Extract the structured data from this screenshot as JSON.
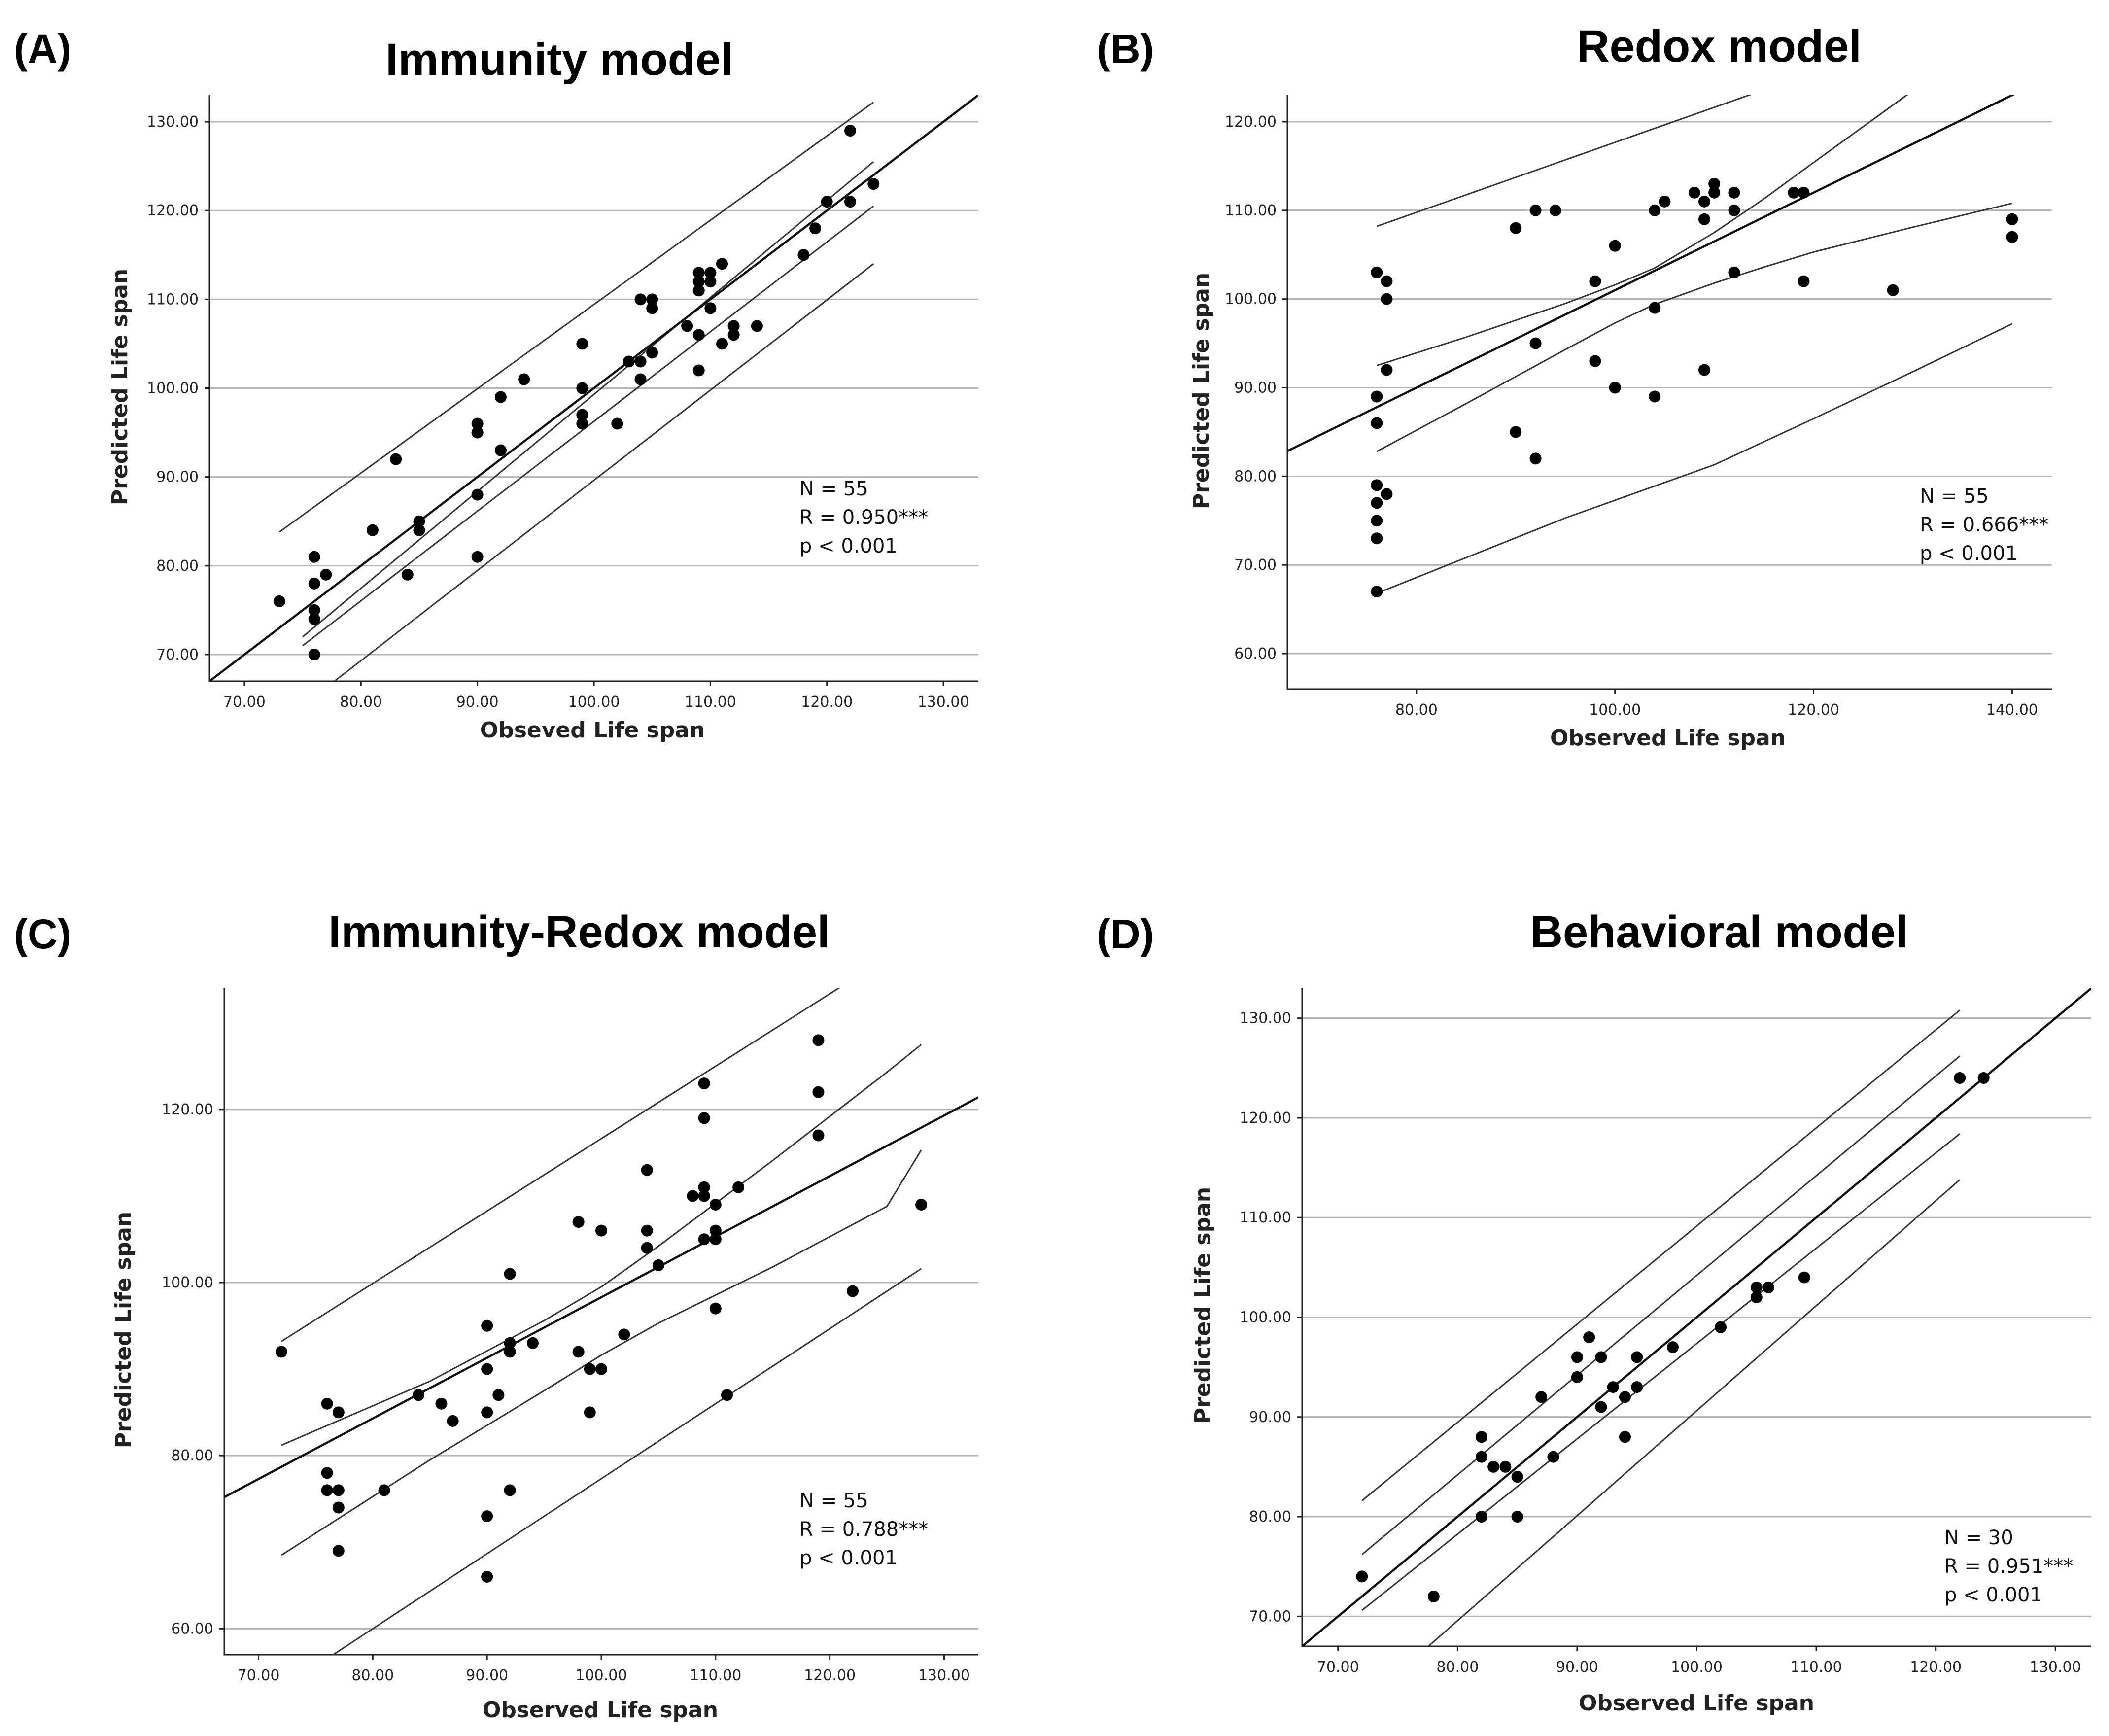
{
  "panels": [
    {
      "id": "A",
      "letter": "(A)",
      "title": "Immunity model",
      "xlabel": "Obseved Life span",
      "ylabel": "Predicted Life span",
      "stats": [
        "N = 55",
        "R = 0.950***",
        "p < 0.001"
      ]
    },
    {
      "id": "B",
      "letter": "(B)",
      "title": "Redox model",
      "xlabel": "Observed Life span",
      "ylabel": "Predicted Life span",
      "stats": [
        "N = 55",
        "R = 0.666***",
        "p < 0.001"
      ]
    },
    {
      "id": "C",
      "letter": "(C)",
      "title": "Immunity-Redox model",
      "xlabel": "Observed Life span",
      "ylabel": "Predicted Life span",
      "stats": [
        "N = 55",
        "R = 0.788***",
        "p < 0.001"
      ]
    },
    {
      "id": "D",
      "letter": "(D)",
      "title": "Behavioral model",
      "xlabel": "Observed Life span",
      "ylabel": "Predicted Life span",
      "stats": [
        "N = 30",
        "R = 0.951***",
        "p < 0.001"
      ]
    }
  ],
  "chart_data": [
    {
      "type": "scatter",
      "title": "Immunity model",
      "xlabel": "Obseved Life span",
      "ylabel": "Predicted Life span",
      "xlim": [
        67,
        133
      ],
      "ylim": [
        67,
        133
      ],
      "xticks": [
        70,
        80,
        90,
        100,
        110,
        120,
        130
      ],
      "yticks": [
        70,
        80,
        90,
        100,
        110,
        120,
        130
      ],
      "tick_format": "0.00",
      "grid": "horizontal",
      "n": 55,
      "r": "0.950***",
      "p": "< 0.001",
      "points": [
        [
          73,
          76
        ],
        [
          76,
          81
        ],
        [
          76,
          78
        ],
        [
          76,
          75
        ],
        [
          76,
          74
        ],
        [
          76,
          70
        ],
        [
          77,
          79
        ],
        [
          81,
          84
        ],
        [
          83,
          92
        ],
        [
          84,
          79
        ],
        [
          85,
          85
        ],
        [
          85,
          84
        ],
        [
          90,
          96
        ],
        [
          90,
          95
        ],
        [
          90,
          88
        ],
        [
          90,
          81
        ],
        [
          92,
          99
        ],
        [
          92,
          93
        ],
        [
          94,
          101
        ],
        [
          99,
          105
        ],
        [
          99,
          100
        ],
        [
          99,
          97
        ],
        [
          99,
          96
        ],
        [
          102,
          96
        ],
        [
          103,
          103
        ],
        [
          104,
          110
        ],
        [
          104,
          103
        ],
        [
          104,
          101
        ],
        [
          105,
          110
        ],
        [
          105,
          109
        ],
        [
          105,
          104
        ],
        [
          108,
          107
        ],
        [
          109,
          113
        ],
        [
          109,
          112
        ],
        [
          109,
          111
        ],
        [
          109,
          106
        ],
        [
          109,
          102
        ],
        [
          110,
          113
        ],
        [
          110,
          112
        ],
        [
          110,
          109
        ],
        [
          111,
          114
        ],
        [
          111,
          105
        ],
        [
          112,
          107
        ],
        [
          112,
          106
        ],
        [
          114,
          107
        ],
        [
          118,
          115
        ],
        [
          119,
          118
        ],
        [
          120,
          121
        ],
        [
          122,
          129
        ],
        [
          122,
          121
        ],
        [
          124,
          123
        ]
      ],
      "fit": {
        "slope": 1.0,
        "intercept": 0.0,
        "x_range": [
          67,
          133
        ]
      },
      "conf_band": {
        "upper": [
          [
            75,
            72
          ],
          [
            124,
            125.5
          ]
        ],
        "lower": [
          [
            75,
            71
          ],
          [
            124,
            120.5
          ]
        ]
      },
      "pred_band": {
        "upper": [
          [
            73,
            83.8
          ],
          [
            124,
            132.2
          ]
        ],
        "lower": [
          [
            73,
            62.2
          ],
          [
            124,
            114
          ]
        ]
      }
    },
    {
      "type": "scatter",
      "title": "Redox model",
      "xlabel": "Observed Life span",
      "ylabel": "Predicted Life span",
      "xlim": [
        67,
        144
      ],
      "ylim": [
        56,
        123
      ],
      "xticks": [
        80,
        100,
        120,
        140
      ],
      "yticks": [
        60,
        70,
        80,
        90,
        100,
        110,
        120
      ],
      "tick_format": "0.00",
      "grid": "horizontal",
      "n": 55,
      "r": "0.666***",
      "p": "< 0.001",
      "points": [
        [
          76,
          103
        ],
        [
          77,
          102
        ],
        [
          77,
          100
        ],
        [
          77,
          92
        ],
        [
          76,
          89
        ],
        [
          76,
          86
        ],
        [
          76,
          79
        ],
        [
          77,
          78
        ],
        [
          76,
          77
        ],
        [
          76,
          75
        ],
        [
          76,
          73
        ],
        [
          76,
          67
        ],
        [
          90,
          108
        ],
        [
          92,
          110
        ],
        [
          94,
          110
        ],
        [
          90,
          85
        ],
        [
          92,
          95
        ],
        [
          92,
          82
        ],
        [
          98,
          102
        ],
        [
          98,
          93
        ],
        [
          100,
          106
        ],
        [
          100,
          90
        ],
        [
          104,
          110
        ],
        [
          104,
          99
        ],
        [
          104,
          89
        ],
        [
          105,
          111
        ],
        [
          108,
          112
        ],
        [
          109,
          111
        ],
        [
          109,
          109
        ],
        [
          109,
          92
        ],
        [
          110,
          113
        ],
        [
          110,
          112
        ],
        [
          112,
          112
        ],
        [
          112,
          110
        ],
        [
          112,
          103
        ],
        [
          118,
          112
        ],
        [
          119,
          112
        ],
        [
          119,
          102
        ],
        [
          128,
          101
        ],
        [
          140,
          109
        ],
        [
          140,
          107
        ]
      ],
      "fit": {
        "slope": 0.55,
        "intercept": 46,
        "x_range": [
          67,
          144
        ]
      },
      "conf_band": {
        "upper": [
          [
            76,
            92.5
          ],
          [
            85,
            95.7
          ],
          [
            95,
            99.5
          ],
          [
            100,
            101.6
          ],
          [
            104,
            103.5
          ],
          [
            110,
            107.5
          ],
          [
            115,
            111.3
          ],
          [
            120,
            115.4
          ],
          [
            130,
            123.5
          ],
          [
            136,
            128
          ]
        ],
        "lower": [
          [
            76,
            82.8
          ],
          [
            85,
            88.2
          ],
          [
            95,
            94.3
          ],
          [
            100,
            97.3
          ],
          [
            104,
            99.4
          ],
          [
            110,
            101.8
          ],
          [
            115,
            103.6
          ],
          [
            120,
            105.3
          ],
          [
            130,
            108.1
          ],
          [
            140,
            110.8
          ]
        ]
      },
      "pred_band": {
        "upper": [
          [
            76,
            108.2
          ],
          [
            114,
            123.2
          ]
        ],
        "lower": [
          [
            76,
            66.8
          ],
          [
            95,
            75.3
          ],
          [
            110,
            81.3
          ],
          [
            120,
            86.5
          ],
          [
            130,
            91.8
          ],
          [
            140,
            97.2
          ]
        ]
      }
    },
    {
      "type": "scatter",
      "title": "Immunity-Redox model",
      "xlabel": "Observed Life span",
      "ylabel": "Predicted Life span",
      "xlim": [
        67,
        133
      ],
      "ylim": [
        57,
        134
      ],
      "xticks": [
        70,
        80,
        90,
        100,
        110,
        120,
        130
      ],
      "yticks": [
        60,
        80,
        100,
        120
      ],
      "tick_format": "0.00",
      "grid": "horizontal",
      "n": 55,
      "r": "0.788***",
      "p": "< 0.001",
      "points": [
        [
          72,
          92
        ],
        [
          76,
          86
        ],
        [
          76,
          78
        ],
        [
          76,
          76
        ],
        [
          77,
          85
        ],
        [
          77,
          76
        ],
        [
          77,
          74
        ],
        [
          77,
          69
        ],
        [
          81,
          76
        ],
        [
          84,
          87
        ],
        [
          86,
          86
        ],
        [
          87,
          84
        ],
        [
          90,
          95
        ],
        [
          90,
          90
        ],
        [
          90,
          85
        ],
        [
          90,
          73
        ],
        [
          90,
          66
        ],
        [
          91,
          87
        ],
        [
          92,
          101
        ],
        [
          92,
          93
        ],
        [
          92,
          92
        ],
        [
          92,
          76
        ],
        [
          94,
          93
        ],
        [
          98,
          107
        ],
        [
          98,
          92
        ],
        [
          99,
          90
        ],
        [
          99,
          85
        ],
        [
          100,
          106
        ],
        [
          100,
          90
        ],
        [
          102,
          94
        ],
        [
          104,
          113
        ],
        [
          104,
          106
        ],
        [
          104,
          104
        ],
        [
          105,
          102
        ],
        [
          108,
          110
        ],
        [
          109,
          123
        ],
        [
          109,
          119
        ],
        [
          109,
          111
        ],
        [
          109,
          110
        ],
        [
          109,
          105
        ],
        [
          110,
          109
        ],
        [
          110,
          106
        ],
        [
          110,
          105
        ],
        [
          110,
          97
        ],
        [
          111,
          87
        ],
        [
          112,
          111
        ],
        [
          119,
          128
        ],
        [
          119,
          122
        ],
        [
          119,
          117
        ],
        [
          122,
          99
        ],
        [
          128,
          109
        ]
      ],
      "fit": {
        "slope": 0.7,
        "intercept": 28.3,
        "x_range": [
          67,
          133
        ]
      },
      "conf_band": {
        "upper": [
          [
            72,
            81.2
          ],
          [
            85,
            88.6
          ],
          [
            95,
            95.6
          ],
          [
            100,
            99.5
          ],
          [
            105,
            104.2
          ],
          [
            115,
            114.1
          ],
          [
            125,
            124.3
          ],
          [
            128,
            127.5
          ]
        ],
        "lower": [
          [
            72,
            68.5
          ],
          [
            85,
            79.5
          ],
          [
            95,
            87.5
          ],
          [
            100,
            91.6
          ],
          [
            105,
            95.3
          ],
          [
            115,
            101.8
          ],
          [
            125,
            108.8
          ],
          [
            128,
            115.3
          ]
        ]
      },
      "pred_band": {
        "upper": [
          [
            72,
            93.2
          ],
          [
            121,
            134.2
          ]
        ],
        "lower": [
          [
            74,
            54.8
          ],
          [
            128,
            101.6
          ]
        ]
      }
    },
    {
      "type": "scatter",
      "title": "Behavioral model",
      "xlabel": "Observed Life span",
      "ylabel": "Predicted Life span",
      "xlim": [
        67,
        133
      ],
      "ylim": [
        67,
        133
      ],
      "xticks": [
        70,
        80,
        90,
        100,
        110,
        120,
        130
      ],
      "yticks": [
        70,
        80,
        90,
        100,
        110,
        120,
        130
      ],
      "tick_format": "0.00",
      "grid": "horizontal",
      "n": 30,
      "r": "0.951***",
      "p": "< 0.001",
      "points": [
        [
          72,
          74
        ],
        [
          78,
          72
        ],
        [
          82,
          88
        ],
        [
          82,
          86
        ],
        [
          82,
          80
        ],
        [
          83,
          85
        ],
        [
          84,
          85
        ],
        [
          85,
          84
        ],
        [
          85,
          80
        ],
        [
          87,
          92
        ],
        [
          88,
          86
        ],
        [
          90,
          96
        ],
        [
          90,
          94
        ],
        [
          91,
          98
        ],
        [
          92,
          96
        ],
        [
          92,
          91
        ],
        [
          93,
          93
        ],
        [
          94,
          92
        ],
        [
          94,
          88
        ],
        [
          95,
          96
        ],
        [
          95,
          93
        ],
        [
          98,
          97
        ],
        [
          102,
          99
        ],
        [
          105,
          103
        ],
        [
          105,
          102
        ],
        [
          106,
          103
        ],
        [
          109,
          104
        ],
        [
          122,
          124
        ],
        [
          124,
          124
        ]
      ],
      "fit": {
        "slope": 1.0,
        "intercept": 0.0,
        "x_range": [
          67,
          133
        ]
      },
      "conf_band": {
        "upper": [
          [
            72,
            76.2
          ],
          [
            122,
            126.2
          ]
        ],
        "lower": [
          [
            72,
            70.6
          ],
          [
            122,
            118.4
          ]
        ]
      },
      "pred_band": {
        "upper": [
          [
            72,
            81.6
          ],
          [
            122,
            130.8
          ]
        ],
        "lower": [
          [
            73,
            62.2
          ],
          [
            122,
            113.8
          ]
        ]
      }
    }
  ]
}
